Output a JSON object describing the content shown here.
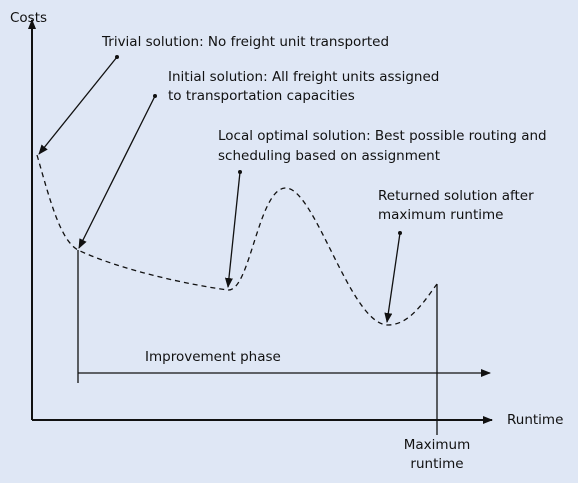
{
  "axes": {
    "y_label": "Costs",
    "x_label": "Runtime"
  },
  "annotations": [
    {
      "lines": [
        "Trivial solution: No freight unit transported"
      ]
    },
    {
      "lines": [
        "Initial solution: All freight units assigned",
        "to transportation capacities"
      ]
    },
    {
      "lines": [
        "Local optimal solution: Best possible routing and",
        "scheduling based on assignment"
      ]
    },
    {
      "lines": [
        "Returned solution after",
        "maximum runtime"
      ]
    }
  ],
  "phase": "Improvement phase",
  "max_runtime": [
    "Maximum",
    "runtime"
  ]
}
